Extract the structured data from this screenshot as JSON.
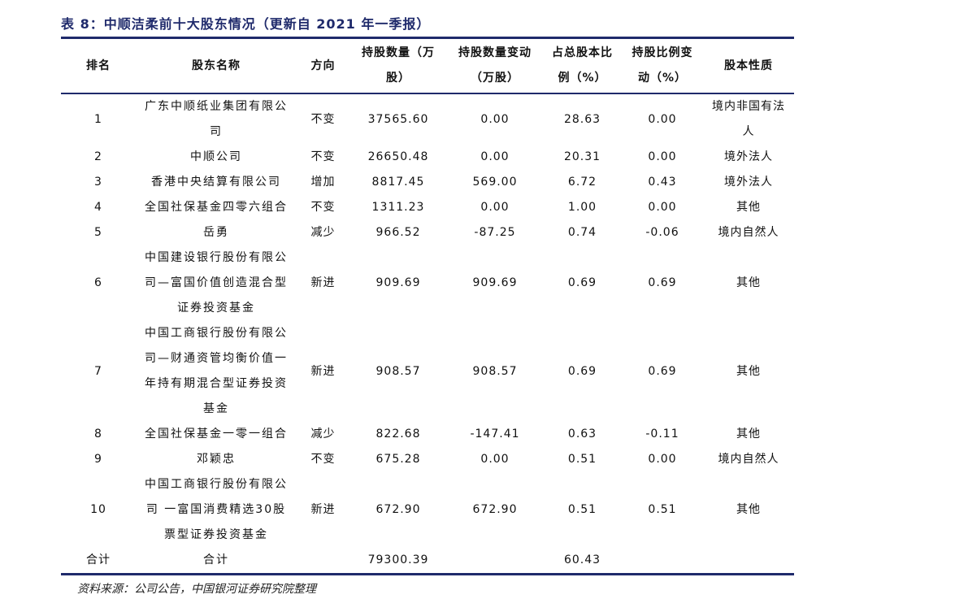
{
  "title": "表 8：中顺洁柔前十大股东情况（更新自 2021 年一季报）",
  "table": {
    "header": [
      "排名",
      "股东名称",
      "方向",
      "持股数量（万股）",
      "持股数量变动（万股）",
      "占总股本比例（%）",
      "持股比例变动（%）",
      "股本性质"
    ],
    "rows": [
      [
        "1",
        "广东中顺纸业集团有限公司",
        "不变",
        "37565.60",
        "0.00",
        "28.63",
        "0.00",
        "境内非国有法人"
      ],
      [
        "2",
        "中顺公司",
        "不变",
        "26650.48",
        "0.00",
        "20.31",
        "0.00",
        "境外法人"
      ],
      [
        "3",
        "香港中央结算有限公司",
        "增加",
        "8817.45",
        "569.00",
        "6.72",
        "0.43",
        "境外法人"
      ],
      [
        "4",
        "全国社保基金四零六组合",
        "不变",
        "1311.23",
        "0.00",
        "1.00",
        "0.00",
        "其他"
      ],
      [
        "5",
        "岳勇",
        "减少",
        "966.52",
        "-87.25",
        "0.74",
        "-0.06",
        "境内自然人"
      ],
      [
        "6",
        "中国建设银行股份有限公司—富国价值创造混合型证券投资基金",
        "新进",
        "909.69",
        "909.69",
        "0.69",
        "0.69",
        "其他"
      ],
      [
        "7",
        "中国工商银行股份有限公司—财通资管均衡价值一年持有期混合型证券投资基金",
        "新进",
        "908.57",
        "908.57",
        "0.69",
        "0.69",
        "其他"
      ],
      [
        "8",
        "全国社保基金一零一组合",
        "减少",
        "822.68",
        "-147.41",
        "0.63",
        "-0.11",
        "其他"
      ],
      [
        "9",
        "邓颖忠",
        "不变",
        "675.28",
        "0.00",
        "0.51",
        "0.00",
        "境内自然人"
      ],
      [
        "10",
        "中国工商银行股份有限公司 一富国消费精选30股票型证券投资基金",
        "新进",
        "672.90",
        "672.90",
        "0.51",
        "0.51",
        "其他"
      ],
      [
        "合计",
        "合计",
        null,
        "79300.39",
        null,
        "60.43",
        null,
        null
      ]
    ]
  },
  "source": "资料来源：公司公告，中国银河证券研究院整理"
}
